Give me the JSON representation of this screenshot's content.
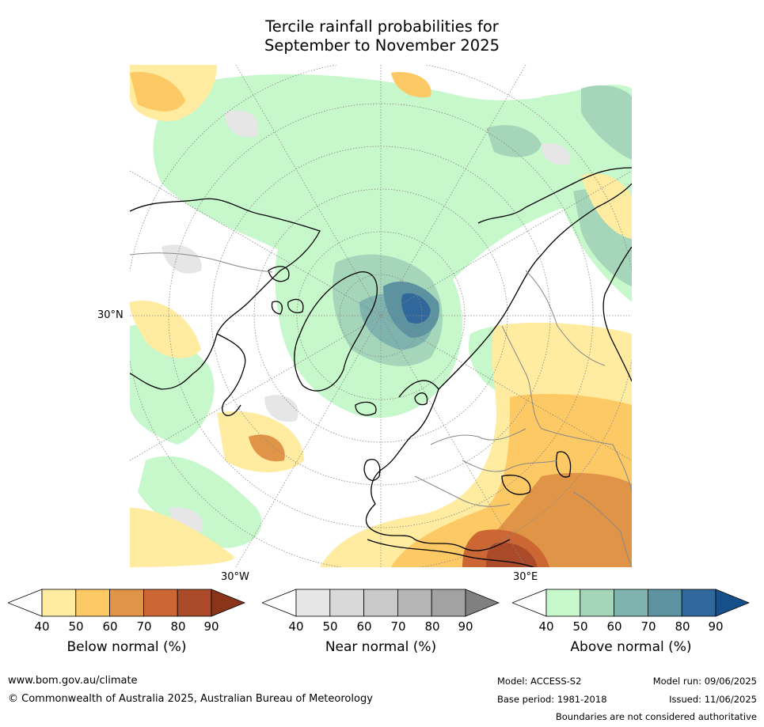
{
  "title": {
    "line1": "Tercile rainfall probabilities for",
    "line2": "September to November 2025"
  },
  "map": {
    "projection": "north-polar-stereographic",
    "lat_label": "30°N",
    "lon_labels": [
      "30°W",
      "30°E"
    ]
  },
  "colorbars": [
    {
      "label": "Below normal (%)",
      "ticks": [
        "40",
        "50",
        "60",
        "70",
        "80",
        "90"
      ],
      "colors": [
        "#ffffff",
        "#ffeca0",
        "#fdc964",
        "#e09447",
        "#cc6733",
        "#ab4a28",
        "#8a3519"
      ]
    },
    {
      "label": "Near normal (%)",
      "ticks": [
        "40",
        "50",
        "60",
        "70",
        "80",
        "90"
      ],
      "colors": [
        "#ffffff",
        "#e6e6e6",
        "#d9d9d9",
        "#c9c9c9",
        "#b6b6b6",
        "#a2a2a2",
        "#808080"
      ]
    },
    {
      "label": "Above normal (%)",
      "ticks": [
        "40",
        "50",
        "60",
        "70",
        "80",
        "90"
      ],
      "colors": [
        "#ffffff",
        "#c7f8cc",
        "#a5d6ba",
        "#7fb3ae",
        "#5d93a0",
        "#31689c",
        "#15508b"
      ]
    }
  ],
  "footer": {
    "website": "www.bom.gov.au/climate",
    "copyright": "© Commonwealth of Australia 2025, Australian Bureau of Meteorology",
    "model": "Model: ACCESS-S2",
    "base_period": "Base period: 1981-2018",
    "model_run": "Model run: 09/06/2025",
    "issued": "Issued: 11/06/2025",
    "disclaimer": "Boundaries are not considered authoritative"
  }
}
